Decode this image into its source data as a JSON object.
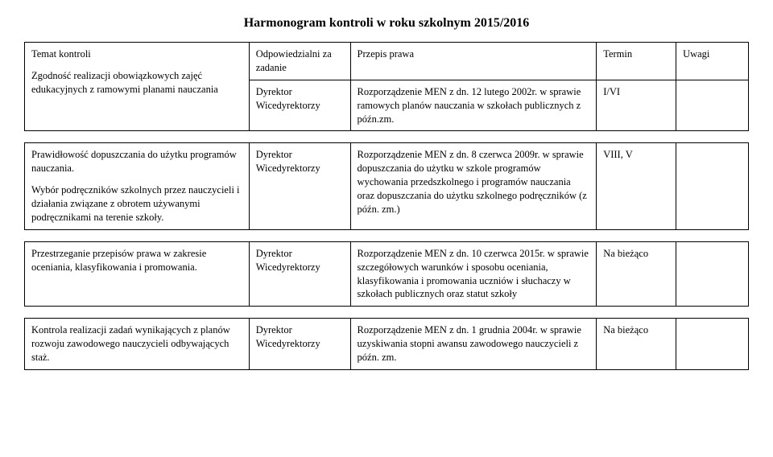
{
  "title": "Harmonogram kontroli w roku szkolnym 2015/2016",
  "header": {
    "c1": "Temat kontroli",
    "c2": "Odpowiedzialni za zadanie",
    "c3": "Przepis prawa",
    "c4": "Termin",
    "c5": "Uwagi"
  },
  "rows": [
    {
      "c1": "Zgodność realizacji obowiązkowych zajęć edukacyjnych z ramowymi planami nauczania",
      "c2a": "Dyrektor",
      "c2b": "Wicedyrektorzy",
      "c3": "Rozporządzenie MEN z dn. 12 lutego 2002r. w sprawie ramowych planów nauczania w szkołach publicznych z późn.zm.",
      "c4": "I/VI",
      "c5": ""
    },
    {
      "c1a": "Prawidłowość dopuszczania do użytku programów nauczania.",
      "c1b": "Wybór podręczników szkolnych przez nauczycieli i działania związane z obrotem używanymi podręcznikami na terenie szkoły.",
      "c2a": "Dyrektor",
      "c2b": "Wicedyrektorzy",
      "c3": "Rozporządzenie MEN z dn. 8 czerwca 2009r. w sprawie dopuszczania do użytku w szkole programów wychowania przedszkolnego i programów nauczania oraz dopuszczania do użytku szkolnego podręczników (z późn. zm.)",
      "c4": "VIII, V",
      "c5": ""
    },
    {
      "c1": "Przestrzeganie przepisów prawa w zakresie oceniania, klasyfikowania i promowania.",
      "c2a": "Dyrektor",
      "c2b": "Wicedyrektorzy",
      "c3": "Rozporządzenie MEN z dn. 10 czerwca 2015r. w sprawie szczegółowych warunków i sposobu oceniania, klasyfikowania i promowania uczniów i słuchaczy w szkołach publicznych oraz statut szkoły",
      "c4": "Na bieżąco",
      "c5": ""
    },
    {
      "c1": "Kontrola realizacji zadań wynikających z planów rozwoju zawodowego nauczycieli odbywających staż.",
      "c2a": "Dyrektor",
      "c2b": "Wicedyrektorzy",
      "c3": "Rozporządzenie MEN z dn. 1 grudnia 2004r. w sprawie uzyskiwania stopni awansu zawodowego nauczycieli z późn. zm.",
      "c4": "Na bieżąco",
      "c5": ""
    }
  ]
}
